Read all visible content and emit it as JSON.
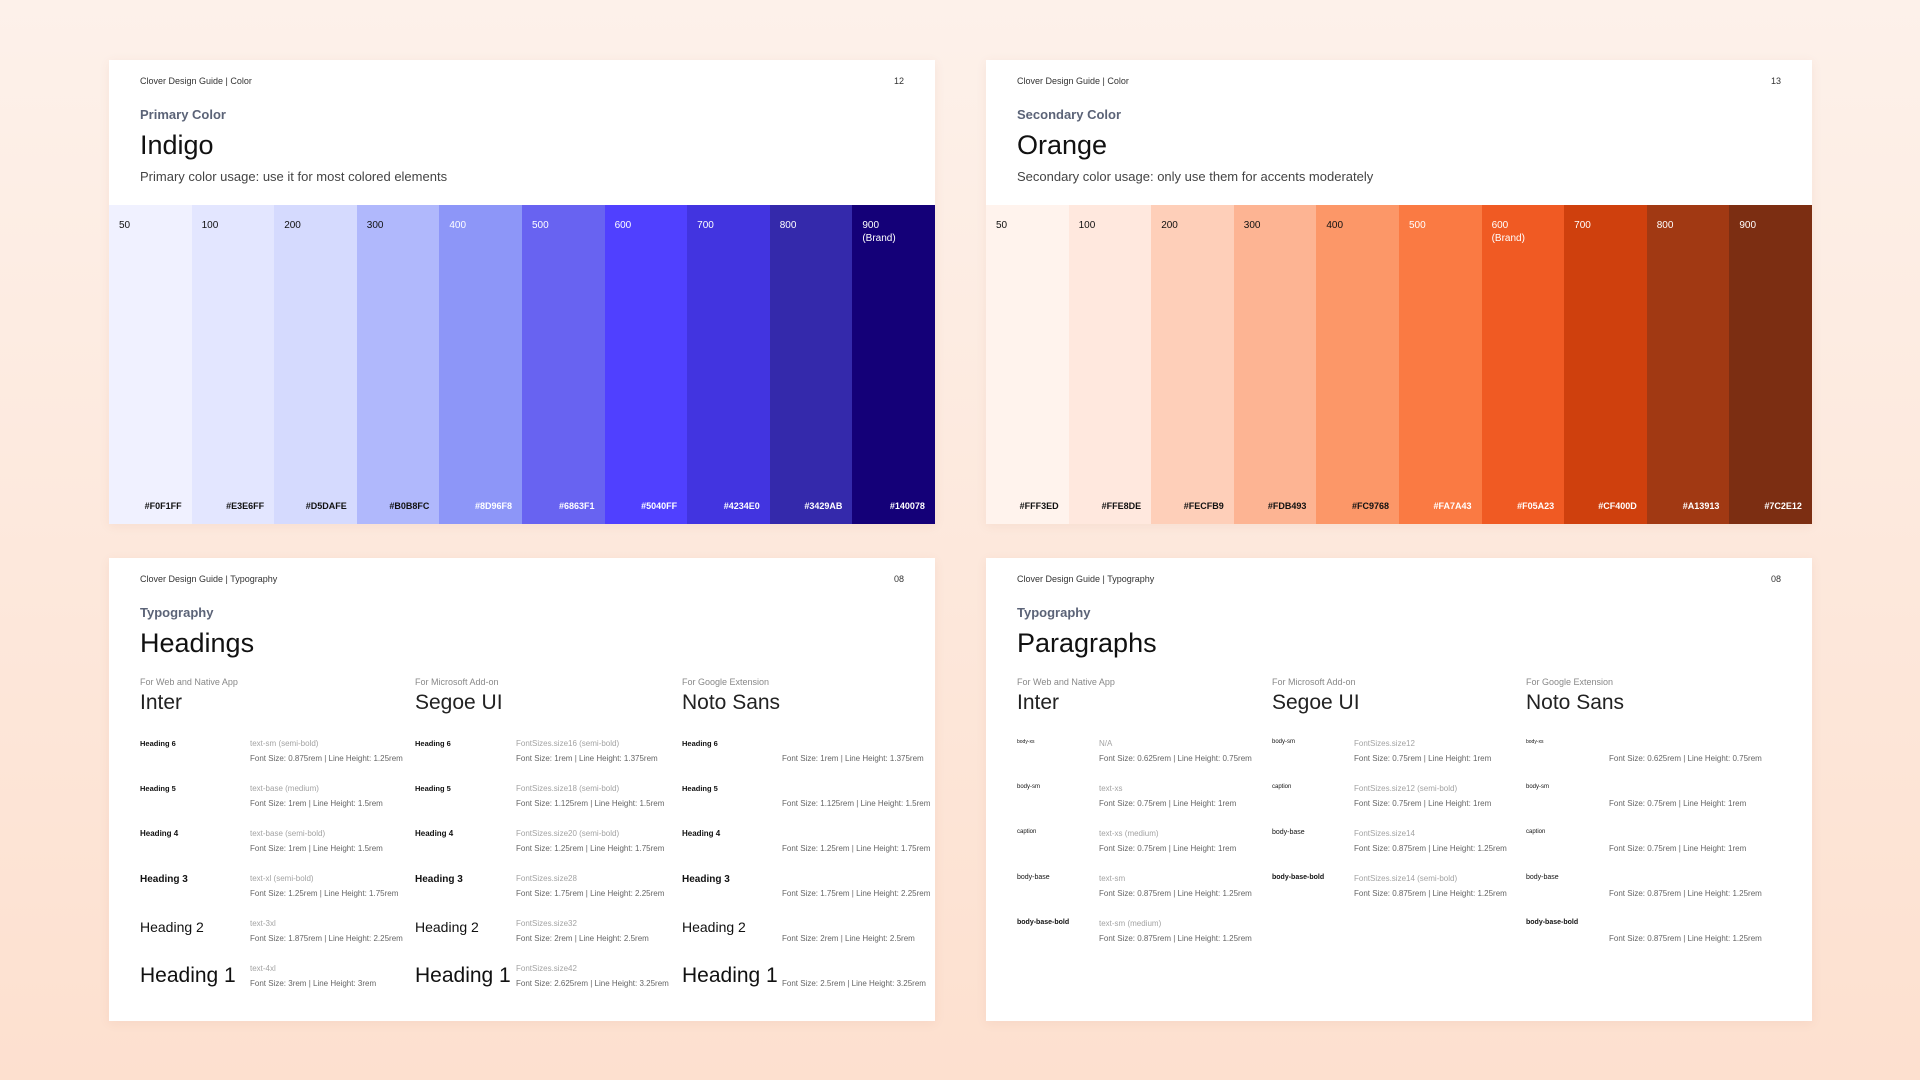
{
  "color_cards": [
    {
      "header": "Clover Design Guide | Color",
      "page": "12",
      "eyebrow": "Primary Color",
      "title": "Indigo",
      "subtitle": "Primary color usage: use it for most colored elements",
      "swatches": [
        {
          "step": "50",
          "note": "",
          "hex": "#F0F1FF",
          "color": "#F0F1FF",
          "text": "#111111"
        },
        {
          "step": "100",
          "note": "",
          "hex": "#E3E6FF",
          "color": "#E3E6FF",
          "text": "#111111"
        },
        {
          "step": "200",
          "note": "",
          "hex": "#D5DAFE",
          "color": "#D5DAFE",
          "text": "#111111"
        },
        {
          "step": "300",
          "note": "",
          "hex": "#B0B8FC",
          "color": "#B0B8FC",
          "text": "#111111"
        },
        {
          "step": "400",
          "note": "",
          "hex": "#8D96F8",
          "color": "#8D96F8",
          "text": "#ffffff"
        },
        {
          "step": "500",
          "note": "",
          "hex": "#6863F1",
          "color": "#6863F1",
          "text": "#ffffff"
        },
        {
          "step": "600",
          "note": "",
          "hex": "#5040FF",
          "color": "#5040FF",
          "text": "#ffffff"
        },
        {
          "step": "700",
          "note": "",
          "hex": "#4234E0",
          "color": "#4234E0",
          "text": "#ffffff"
        },
        {
          "step": "800",
          "note": "",
          "hex": "#3429AB",
          "color": "#3429AB",
          "text": "#ffffff"
        },
        {
          "step": "900",
          "note": "(Brand)",
          "hex": "#140078",
          "color": "#140078",
          "text": "#ffffff"
        }
      ]
    },
    {
      "header": "Clover Design Guide | Color",
      "page": "13",
      "eyebrow": "Secondary Color",
      "title": "Orange",
      "subtitle": "Secondary color usage: only use them for accents moderately",
      "swatches": [
        {
          "step": "50",
          "note": "",
          "hex": "#FFF3ED",
          "color": "#FFF3ED",
          "text": "#111111"
        },
        {
          "step": "100",
          "note": "",
          "hex": "#FFE8DE",
          "color": "#FFE8DE",
          "text": "#111111"
        },
        {
          "step": "200",
          "note": "",
          "hex": "#FECFB9",
          "color": "#FECFB9",
          "text": "#111111"
        },
        {
          "step": "300",
          "note": "",
          "hex": "#FDB493",
          "color": "#FDB493",
          "text": "#111111"
        },
        {
          "step": "400",
          "note": "",
          "hex": "#FC9768",
          "color": "#FC9768",
          "text": "#111111"
        },
        {
          "step": "500",
          "note": "",
          "hex": "#FA7A43",
          "color": "#FA7A43",
          "text": "#ffffff"
        },
        {
          "step": "600",
          "note": "(Brand)",
          "hex": "#F05A23",
          "color": "#F05A23",
          "text": "#ffffff"
        },
        {
          "step": "700",
          "note": "",
          "hex": "#CF400D",
          "color": "#CF400D",
          "text": "#ffffff"
        },
        {
          "step": "800",
          "note": "",
          "hex": "#A13913",
          "color": "#A13913",
          "text": "#ffffff"
        },
        {
          "step": "900",
          "note": "",
          "hex": "#7C2E12",
          "color": "#7C2E12",
          "text": "#ffffff"
        }
      ]
    }
  ],
  "type_cards": [
    {
      "header": "Clover Design Guide | Typography",
      "page": "08",
      "eyebrow": "Typography",
      "title": "Headings",
      "columns": [
        {
          "for": "For Web and Native App",
          "font": "Inter",
          "rows": [
            {
              "name": "Heading 6",
              "token": "text-sm (semi-bold)",
              "size": "Font Size: 0.875rem | Line Height: 1.25rem"
            },
            {
              "name": "Heading 5",
              "token": "text-base (medium)",
              "size": "Font Size: 1rem | Line Height: 1.5rem"
            },
            {
              "name": "Heading 4",
              "token": "text-base (semi-bold)",
              "size": "Font Size: 1rem | Line Height: 1.5rem"
            },
            {
              "name": "Heading 3",
              "token": "text-xl (semi-bold)",
              "size": "Font Size: 1.25rem | Line Height: 1.75rem"
            },
            {
              "name": "Heading 2",
              "token": "text-3xl",
              "size": "Font Size: 1.875rem | Line Height: 2.25rem"
            },
            {
              "name": "Heading 1",
              "token": "text-4xl",
              "size": "Font Size: 3rem | Line Height: 3rem"
            }
          ]
        },
        {
          "for": "For Microsoft Add-on",
          "font": "Segoe UI",
          "rows": [
            {
              "name": "Heading 6",
              "token": "FontSizes.size16 (semi-bold)",
              "size": "Font Size: 1rem | Line Height: 1.375rem"
            },
            {
              "name": "Heading 5",
              "token": "FontSizes.size18 (semi-bold)",
              "size": "Font Size: 1.125rem | Line Height: 1.5rem"
            },
            {
              "name": "Heading 4",
              "token": "FontSizes.size20 (semi-bold)",
              "size": "Font Size: 1.25rem | Line Height: 1.75rem"
            },
            {
              "name": "Heading 3",
              "token": "FontSizes.size28",
              "size": "Font Size: 1.75rem | Line Height: 2.25rem"
            },
            {
              "name": "Heading 2",
              "token": "FontSizes.size32",
              "size": "Font Size: 2rem | Line Height: 2.5rem"
            },
            {
              "name": "Heading 1",
              "token": "FontSizes.size42",
              "size": "Font Size: 2.625rem | Line Height: 3.25rem"
            }
          ]
        },
        {
          "for": "For Google Extension",
          "font": "Noto Sans",
          "rows": [
            {
              "name": "Heading 6",
              "token": "",
              "size": "Font Size: 1rem | Line Height: 1.375rem"
            },
            {
              "name": "Heading 5",
              "token": "",
              "size": "Font Size: 1.125rem | Line Height: 1.5rem"
            },
            {
              "name": "Heading 4",
              "token": "",
              "size": "Font Size: 1.25rem | Line Height: 1.75rem"
            },
            {
              "name": "Heading 3",
              "token": "",
              "size": "Font Size: 1.75rem | Line Height: 2.25rem"
            },
            {
              "name": "Heading 2",
              "token": "",
              "size": "Font Size: 2rem | Line Height: 2.5rem"
            },
            {
              "name": "Heading 1",
              "token": "",
              "size": "Font Size: 2.5rem | Line Height: 3.25rem"
            }
          ]
        }
      ]
    },
    {
      "header": "Clover Design Guide | Typography",
      "page": "08",
      "eyebrow": "Typography",
      "title": "Paragraphs",
      "columns": [
        {
          "for": "For Web and Native App",
          "font": "Inter",
          "rows": [
            {
              "name": "body-xs",
              "token": "N/A",
              "size": "Font Size: 0.625rem | Line Height: 0.75rem"
            },
            {
              "name": "body-sm",
              "token": "text-xs",
              "size": "Font Size: 0.75rem | Line Height: 1rem"
            },
            {
              "name": "caption",
              "token": "text-xs (medium)",
              "size": "Font Size: 0.75rem | Line Height: 1rem"
            },
            {
              "name": "body-base",
              "token": "text-sm",
              "size": "Font Size: 0.875rem | Line Height: 1.25rem"
            },
            {
              "name": "body-base-bold",
              "token": "text-sm (medium)",
              "size": "Font Size: 0.875rem | Line Height: 1.25rem"
            }
          ]
        },
        {
          "for": "For Microsoft Add-on",
          "font": "Segoe UI",
          "rows": [
            {
              "name": "body-sm",
              "token": "FontSizes.size12",
              "size": "Font Size: 0.75rem | Line Height: 1rem"
            },
            {
              "name": "caption",
              "token": "FontSizes.size12 (semi-bold)",
              "size": "Font Size: 0.75rem | Line Height: 1rem"
            },
            {
              "name": "body-base",
              "token": "FontSizes.size14",
              "size": "Font Size: 0.875rem | Line Height: 1.25rem"
            },
            {
              "name": "body-base-bold",
              "token": "FontSizes.size14 (semi-bold)",
              "size": "Font Size: 0.875rem | Line Height: 1.25rem"
            }
          ]
        },
        {
          "for": "For Google Extension",
          "font": "Noto Sans",
          "rows": [
            {
              "name": "body-xs",
              "token": "",
              "size": "Font Size: 0.625rem | Line Height: 0.75rem"
            },
            {
              "name": "body-sm",
              "token": "",
              "size": "Font Size: 0.75rem | Line Height: 1rem"
            },
            {
              "name": "caption",
              "token": "",
              "size": "Font Size: 0.75rem | Line Height: 1rem"
            },
            {
              "name": "body-base",
              "token": "",
              "size": "Font Size: 0.875rem | Line Height: 1.25rem"
            },
            {
              "name": "body-base-bold",
              "token": "",
              "size": "Font Size: 0.875rem | Line Height: 1.25rem"
            }
          ]
        }
      ]
    }
  ]
}
